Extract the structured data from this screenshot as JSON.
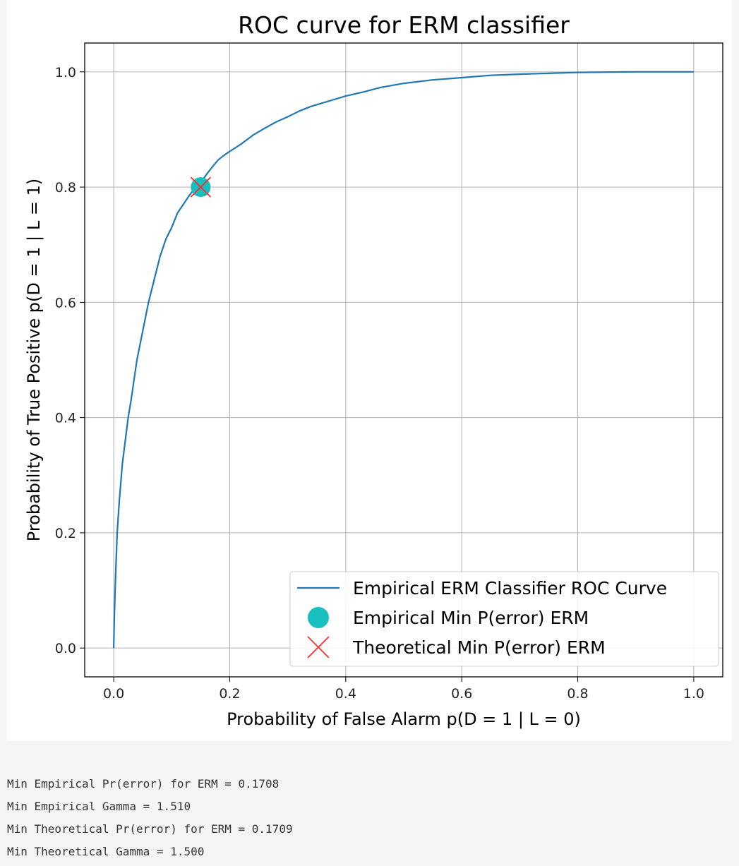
{
  "chart_data": {
    "type": "line",
    "title": "ROC curve for ERM classifier",
    "xlabel": "Probability of False Alarm p(D = 1 | L = 0)",
    "ylabel": "Probability of True Positive p(D = 1 | L = 1)",
    "xlim": [
      -0.05,
      1.05
    ],
    "ylim": [
      -0.05,
      1.05
    ],
    "xticks": [
      0.0,
      0.2,
      0.4,
      0.6,
      0.8,
      1.0
    ],
    "yticks": [
      0.0,
      0.2,
      0.4,
      0.6,
      0.8,
      1.0
    ],
    "xtick_labels": [
      "0.0",
      "0.2",
      "0.4",
      "0.6",
      "0.8",
      "1.0"
    ],
    "ytick_labels": [
      "0.0",
      "0.2",
      "0.4",
      "0.6",
      "0.8",
      "1.0"
    ],
    "grid": true,
    "legend_position": "lower-right",
    "series": [
      {
        "name": "Empirical ERM Classifier ROC Curve",
        "kind": "line",
        "color": "#1f77b4",
        "x": [
          0.0,
          0.001,
          0.003,
          0.006,
          0.01,
          0.015,
          0.02,
          0.025,
          0.03,
          0.04,
          0.05,
          0.06,
          0.07,
          0.08,
          0.09,
          0.1,
          0.11,
          0.12,
          0.13,
          0.14,
          0.15,
          0.16,
          0.17,
          0.18,
          0.19,
          0.2,
          0.22,
          0.24,
          0.26,
          0.28,
          0.3,
          0.32,
          0.34,
          0.36,
          0.38,
          0.4,
          0.43,
          0.46,
          0.5,
          0.55,
          0.6,
          0.65,
          0.7,
          0.8,
          0.9,
          1.0
        ],
        "y": [
          0.0,
          0.05,
          0.12,
          0.2,
          0.26,
          0.32,
          0.36,
          0.4,
          0.43,
          0.5,
          0.55,
          0.6,
          0.64,
          0.68,
          0.71,
          0.73,
          0.755,
          0.77,
          0.785,
          0.798,
          0.808,
          0.822,
          0.835,
          0.847,
          0.855,
          0.862,
          0.875,
          0.89,
          0.902,
          0.913,
          0.922,
          0.932,
          0.94,
          0.946,
          0.952,
          0.958,
          0.965,
          0.973,
          0.98,
          0.986,
          0.99,
          0.994,
          0.996,
          0.999,
          1.0,
          1.0
        ]
      },
      {
        "name": "Empirical Min P(error) ERM",
        "kind": "marker-circle",
        "color": "#17bfbf",
        "x": [
          0.15
        ],
        "y": [
          0.8
        ]
      },
      {
        "name": "Theoretical Min P(error) ERM",
        "kind": "marker-x",
        "color": "#ff2a2a",
        "x": [
          0.15
        ],
        "y": [
          0.8
        ]
      }
    ]
  },
  "output_lines": [
    "Min Empirical Pr(error) for ERM = 0.1708",
    "Min Empirical Gamma = 1.510",
    "Min Theoretical Pr(error) for ERM = 0.1709",
    "Min Theoretical Gamma = 1.500"
  ]
}
